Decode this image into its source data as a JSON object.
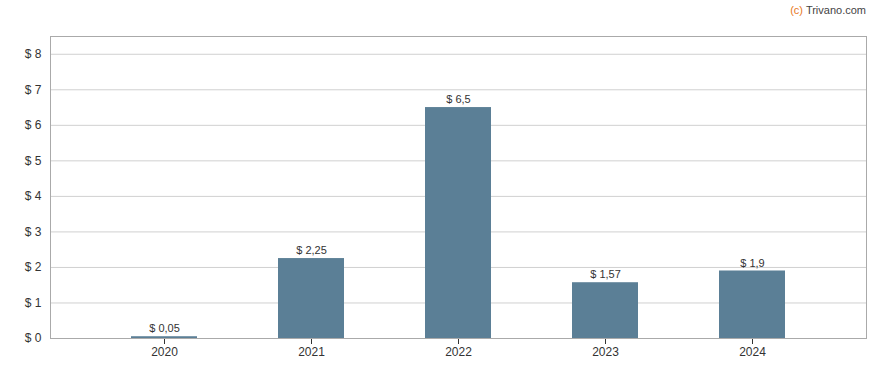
{
  "chart_data": {
    "type": "bar",
    "categories": [
      "2020",
      "2021",
      "2022",
      "2023",
      "2024"
    ],
    "values": [
      0.05,
      2.25,
      6.5,
      1.57,
      1.9
    ],
    "value_labels": [
      "$ 0,05",
      "$ 2,25",
      "$ 6,5",
      "$ 1,57",
      "$ 1,9"
    ],
    "data_labels": true,
    "color": "#5b7f96",
    "ylim": [
      0,
      8.5
    ],
    "yticks": [
      {
        "value": 0,
        "label": "$ 0"
      },
      {
        "value": 1,
        "label": "$ 1"
      },
      {
        "value": 2,
        "label": "$ 2"
      },
      {
        "value": 3,
        "label": "$ 3"
      },
      {
        "value": 4,
        "label": "$ 4"
      },
      {
        "value": 5,
        "label": "$ 5"
      },
      {
        "value": 6,
        "label": "$ 6"
      },
      {
        "value": 7,
        "label": "$ 7"
      },
      {
        "value": 8,
        "label": "$ 8"
      }
    ],
    "grid": true,
    "annotations": [
      {
        "text": "(c)",
        "color": "#e87722"
      },
      {
        "text": "Trivano.com",
        "color": "#444444"
      }
    ]
  }
}
